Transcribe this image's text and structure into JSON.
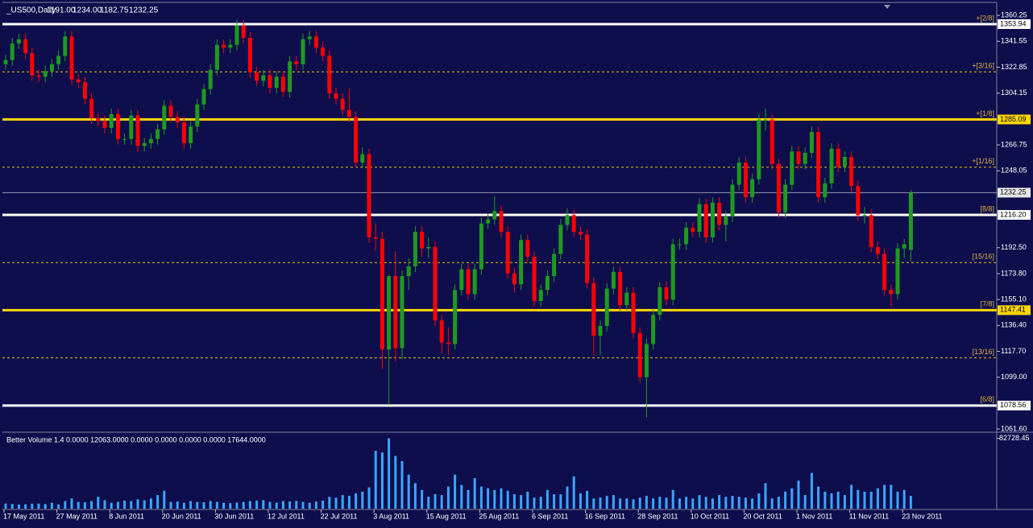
{
  "chart_data": {
    "type": "candlestick",
    "title": "_US500,Daily",
    "header_values": [
      "1191.00",
      "1234.00",
      "1182.75",
      "1232.25"
    ],
    "categories": [
      "17 May 2011",
      null,
      null,
      null,
      null,
      null,
      null,
      null,
      "27 May 2011",
      null,
      null,
      null,
      null,
      null,
      null,
      null,
      "8 Jun 2011",
      null,
      null,
      null,
      null,
      null,
      null,
      null,
      "20 Jun 2011",
      null,
      null,
      null,
      null,
      null,
      null,
      null,
      "30 Jun 2011",
      null,
      null,
      null,
      null,
      null,
      null,
      null,
      "12 Jul 2011",
      null,
      null,
      null,
      null,
      null,
      null,
      null,
      "22 Jul 2011",
      null,
      null,
      null,
      null,
      null,
      null,
      null,
      "3 Aug 2011",
      null,
      null,
      null,
      null,
      null,
      null,
      null,
      "15 Aug 2011",
      null,
      null,
      null,
      null,
      null,
      null,
      null,
      "25 Aug 2011",
      null,
      null,
      null,
      null,
      null,
      null,
      null,
      "6 Sep 2011",
      null,
      null,
      null,
      null,
      null,
      null,
      null,
      "16 Sep 2011",
      null,
      null,
      null,
      null,
      null,
      null,
      null,
      "28 Sep 2011",
      null,
      null,
      null,
      null,
      null,
      null,
      null,
      "10 Oct 2011",
      null,
      null,
      null,
      null,
      null,
      null,
      null,
      "20 Oct 2011",
      null,
      null,
      null,
      null,
      null,
      null,
      null,
      "1 Nov 2011",
      null,
      null,
      null,
      null,
      null,
      null,
      null,
      "11 Nov 2011",
      null,
      null,
      null,
      null,
      null,
      null,
      null,
      "23 Nov 2011",
      null
    ],
    "open": [
      1325,
      1328,
      1340,
      1343,
      1333,
      1317,
      1316,
      1320,
      1325,
      1331,
      1345,
      1314,
      1312,
      1300,
      1286,
      1284,
      1279,
      1289,
      1271,
      1271,
      1288,
      1266,
      1268,
      1271,
      1278,
      1295,
      1287,
      1283,
      1268,
      1280,
      1296,
      1307,
      1321,
      1339,
      1337,
      1339,
      1353,
      1344,
      1319,
      1313,
      1317,
      1308,
      1316,
      1305,
      1327,
      1325,
      1343,
      1345,
      1337,
      1331,
      1304,
      1300,
      1292,
      1287,
      1254,
      1260,
      1200,
      1199,
      1119,
      1172,
      1120,
      1172,
      1179,
      1204,
      1192,
      1193,
      1140,
      1124,
      1123,
      1162,
      1177,
      1159,
      1177,
      1210,
      1213,
      1219,
      1204,
      1174,
      1166,
      1198,
      1186,
      1154,
      1162,
      1172,
      1188,
      1209,
      1216,
      1204,
      1202,
      1167,
      1129,
      1136,
      1163,
      1175,
      1151,
      1160,
      1131,
      1099,
      1123,
      1144,
      1164,
      1155,
      1195,
      1195,
      1207,
      1204,
      1224,
      1200,
      1225,
      1209,
      1215,
      1238,
      1254,
      1229,
      1242,
      1285,
      1285,
      1253,
      1218,
      1238,
      1262,
      1253,
      1261,
      1276,
      1229,
      1239,
      1264,
      1251,
      1258,
      1237,
      1216,
      1216,
      1193,
      1188,
      1162,
      1159,
      1192,
      1191
    ],
    "high": [
      1332,
      1344,
      1347,
      1347,
      1337,
      1321,
      1324,
      1329,
      1335,
      1349,
      1349,
      1318,
      1316,
      1304,
      1290,
      1288,
      1293,
      1293,
      1275,
      1292,
      1292,
      1272,
      1275,
      1282,
      1299,
      1299,
      1291,
      1287,
      1284,
      1300,
      1311,
      1325,
      1343,
      1343,
      1343,
      1357,
      1357,
      1348,
      1323,
      1321,
      1321,
      1320,
      1320,
      1331,
      1331,
      1347,
      1349,
      1349,
      1341,
      1335,
      1308,
      1304,
      1307,
      1291,
      1265,
      1264,
      1210,
      1204,
      1173,
      1190,
      1176,
      1185,
      1208,
      1208,
      1200,
      1197,
      1144,
      1135,
      1166,
      1181,
      1181,
      1181,
      1214,
      1217,
      1230,
      1223,
      1208,
      1178,
      1202,
      1202,
      1190,
      1166,
      1176,
      1192,
      1213,
      1221,
      1220,
      1208,
      1206,
      1171,
      1140,
      1167,
      1179,
      1179,
      1164,
      1164,
      1135,
      1127,
      1148,
      1168,
      1168,
      1199,
      1199,
      1211,
      1211,
      1228,
      1228,
      1229,
      1229,
      1219,
      1242,
      1258,
      1258,
      1246,
      1289,
      1293,
      1289,
      1257,
      1242,
      1266,
      1266,
      1265,
      1280,
      1280,
      1243,
      1268,
      1268,
      1262,
      1262,
      1241,
      1222,
      1220,
      1197,
      1192,
      1166,
      1196,
      1199,
      1234
    ],
    "low": [
      1321,
      1324,
      1336,
      1329,
      1313,
      1312,
      1312,
      1316,
      1321,
      1327,
      1310,
      1308,
      1296,
      1282,
      1280,
      1275,
      1275,
      1267,
      1267,
      1267,
      1262,
      1262,
      1264,
      1267,
      1274,
      1283,
      1279,
      1264,
      1264,
      1276,
      1292,
      1303,
      1317,
      1333,
      1333,
      1335,
      1340,
      1315,
      1309,
      1309,
      1304,
      1304,
      1301,
      1301,
      1321,
      1321,
      1339,
      1333,
      1327,
      1300,
      1296,
      1288,
      1283,
      1250,
      1250,
      1196,
      1190,
      1105,
      1079,
      1110,
      1112,
      1162,
      1175,
      1186,
      1185,
      1136,
      1116,
      1115,
      1119,
      1158,
      1155,
      1155,
      1173,
      1206,
      1209,
      1200,
      1170,
      1160,
      1162,
      1182,
      1150,
      1150,
      1158,
      1168,
      1184,
      1205,
      1200,
      1198,
      1163,
      1115,
      1115,
      1132,
      1159,
      1147,
      1147,
      1127,
      1095,
      1070,
      1119,
      1140,
      1151,
      1151,
      1191,
      1191,
      1200,
      1200,
      1196,
      1196,
      1205,
      1197,
      1211,
      1234,
      1225,
      1225,
      1238,
      1277,
      1249,
      1214,
      1214,
      1234,
      1249,
      1249,
      1257,
      1225,
      1225,
      1235,
      1247,
      1247,
      1233,
      1212,
      1210,
      1189,
      1184,
      1158,
      1150,
      1155,
      1185,
      1182.75
    ],
    "close": [
      1328,
      1340,
      1343,
      1333,
      1317,
      1316,
      1320,
      1325,
      1331,
      1345,
      1314,
      1312,
      1300,
      1286,
      1284,
      1279,
      1289,
      1271,
      1271,
      1288,
      1266,
      1268,
      1271,
      1278,
      1295,
      1287,
      1283,
      1268,
      1280,
      1296,
      1307,
      1321,
      1339,
      1337,
      1339,
      1353,
      1344,
      1319,
      1313,
      1317,
      1308,
      1316,
      1305,
      1327,
      1325,
      1343,
      1345,
      1337,
      1331,
      1304,
      1300,
      1292,
      1287,
      1254,
      1260,
      1200,
      1199,
      1119,
      1172,
      1120,
      1172,
      1179,
      1204,
      1192,
      1193,
      1140,
      1124,
      1123,
      1162,
      1177,
      1159,
      1177,
      1210,
      1213,
      1219,
      1204,
      1174,
      1166,
      1198,
      1186,
      1154,
      1162,
      1172,
      1188,
      1209,
      1216,
      1204,
      1202,
      1167,
      1129,
      1136,
      1163,
      1175,
      1151,
      1160,
      1131,
      1099,
      1123,
      1144,
      1164,
      1155,
      1195,
      1195,
      1207,
      1204,
      1224,
      1200,
      1225,
      1209,
      1215,
      1238,
      1254,
      1229,
      1242,
      1285,
      1285,
      1253,
      1218,
      1238,
      1262,
      1253,
      1261,
      1276,
      1229,
      1239,
      1264,
      1251,
      1258,
      1237,
      1216,
      1216,
      1193,
      1188,
      1162,
      1159,
      1192,
      1195,
      1232.25
    ],
    "up_color": "#1e9a1e",
    "down_color": "#ff0000",
    "background": "#0e0e4c",
    "ylim": [
      1059.3,
      1369.6
    ],
    "yticks": [
      1360.25,
      1341.55,
      1322.85,
      1304.15,
      1266.75,
      1248.05,
      {
        "value": 1192.5,
        "label": "1192.50"
      },
      {
        "value": 1173.8,
        "label": "1173.80"
      },
      {
        "value": 1155.1,
        "label": "1155.10"
      },
      {
        "value": 1136.4,
        "label": "1136.40"
      },
      {
        "value": 1117.7,
        "label": "1117.70"
      },
      {
        "value": 1099,
        "label": "1099.00"
      },
      {
        "value": 1061.6,
        "label": "1061.60"
      }
    ],
    "levels": [
      {
        "label": "+[2/8]",
        "value": 1353.94,
        "color": "#ffffff",
        "solid": true
      },
      {
        "label": "+[3/16]",
        "value": 1319.5,
        "color": "#e8c800",
        "solid": false
      },
      {
        "label": "+[1/8]",
        "value": 1285.09,
        "color": "#ffd700",
        "solid": true
      },
      {
        "label": "+[1/16]",
        "value": 1250.65,
        "color": "#e8c800",
        "solid": false
      },
      {
        "label": "[8/8]",
        "value": 1216.2,
        "value_label": "1216.20",
        "color": "#ffffff",
        "solid": true
      },
      {
        "label": "[15/16]",
        "value": 1181.8,
        "color": "#e8c800",
        "solid": false
      },
      {
        "label": "[7/8]",
        "value": 1147.41,
        "color": "#ffd700",
        "solid": true
      },
      {
        "label": "[13/16]",
        "value": 1112.99,
        "color": "#e8c800",
        "solid": false
      },
      {
        "label": "[6/8]",
        "value": 1078.56,
        "color": "#ffffff",
        "solid": true
      }
    ],
    "current_price": 1232.25,
    "volume": {
      "label": "Better Volume 1.4 0.0000 12063.0000 0.0000 0.0000 0.0000 0.0000 17644.0000",
      "color": "#3aa6ff",
      "ylim": [
        0,
        88000
      ],
      "yticks": [
        82728.45
      ],
      "values": [
        6000,
        5500,
        5000,
        5200,
        5800,
        6000,
        5500,
        7000,
        5000,
        9000,
        12000,
        8000,
        7500,
        9000,
        14000,
        10000,
        7000,
        8000,
        9500,
        9000,
        11000,
        10000,
        12000,
        16000,
        21000,
        8000,
        8500,
        7000,
        9000,
        8000,
        7500,
        9000,
        8000,
        7000,
        6500,
        7000,
        8000,
        9000,
        9500,
        10000,
        8000,
        7000,
        9000,
        8500,
        9000,
        8000,
        7000,
        8500,
        9500,
        14000,
        13000,
        16000,
        15000,
        18000,
        20000,
        25000,
        68000,
        66000,
        82728,
        62000,
        56000,
        40000,
        30000,
        22000,
        14000,
        17000,
        16000,
        26000,
        40000,
        28000,
        22000,
        36000,
        26000,
        24000,
        22000,
        24000,
        21000,
        17000,
        16000,
        20000,
        13000,
        14000,
        22000,
        17000,
        17000,
        26000,
        38000,
        18000,
        21000,
        12000,
        13000,
        15000,
        16000,
        12000,
        12000,
        11000,
        13000,
        15000,
        12000,
        14000,
        13000,
        22000,
        12000,
        14000,
        12000,
        16000,
        14000,
        12000,
        16000,
        14000,
        15000,
        14000,
        13000,
        12000,
        18000,
        30000,
        12000,
        14000,
        20000,
        24000,
        33000,
        16000,
        42000,
        26000,
        20000,
        18000,
        20000,
        16000,
        28000,
        22000,
        20000,
        20000,
        24000,
        28000,
        28000,
        20000,
        22000,
        15000
      ]
    }
  }
}
